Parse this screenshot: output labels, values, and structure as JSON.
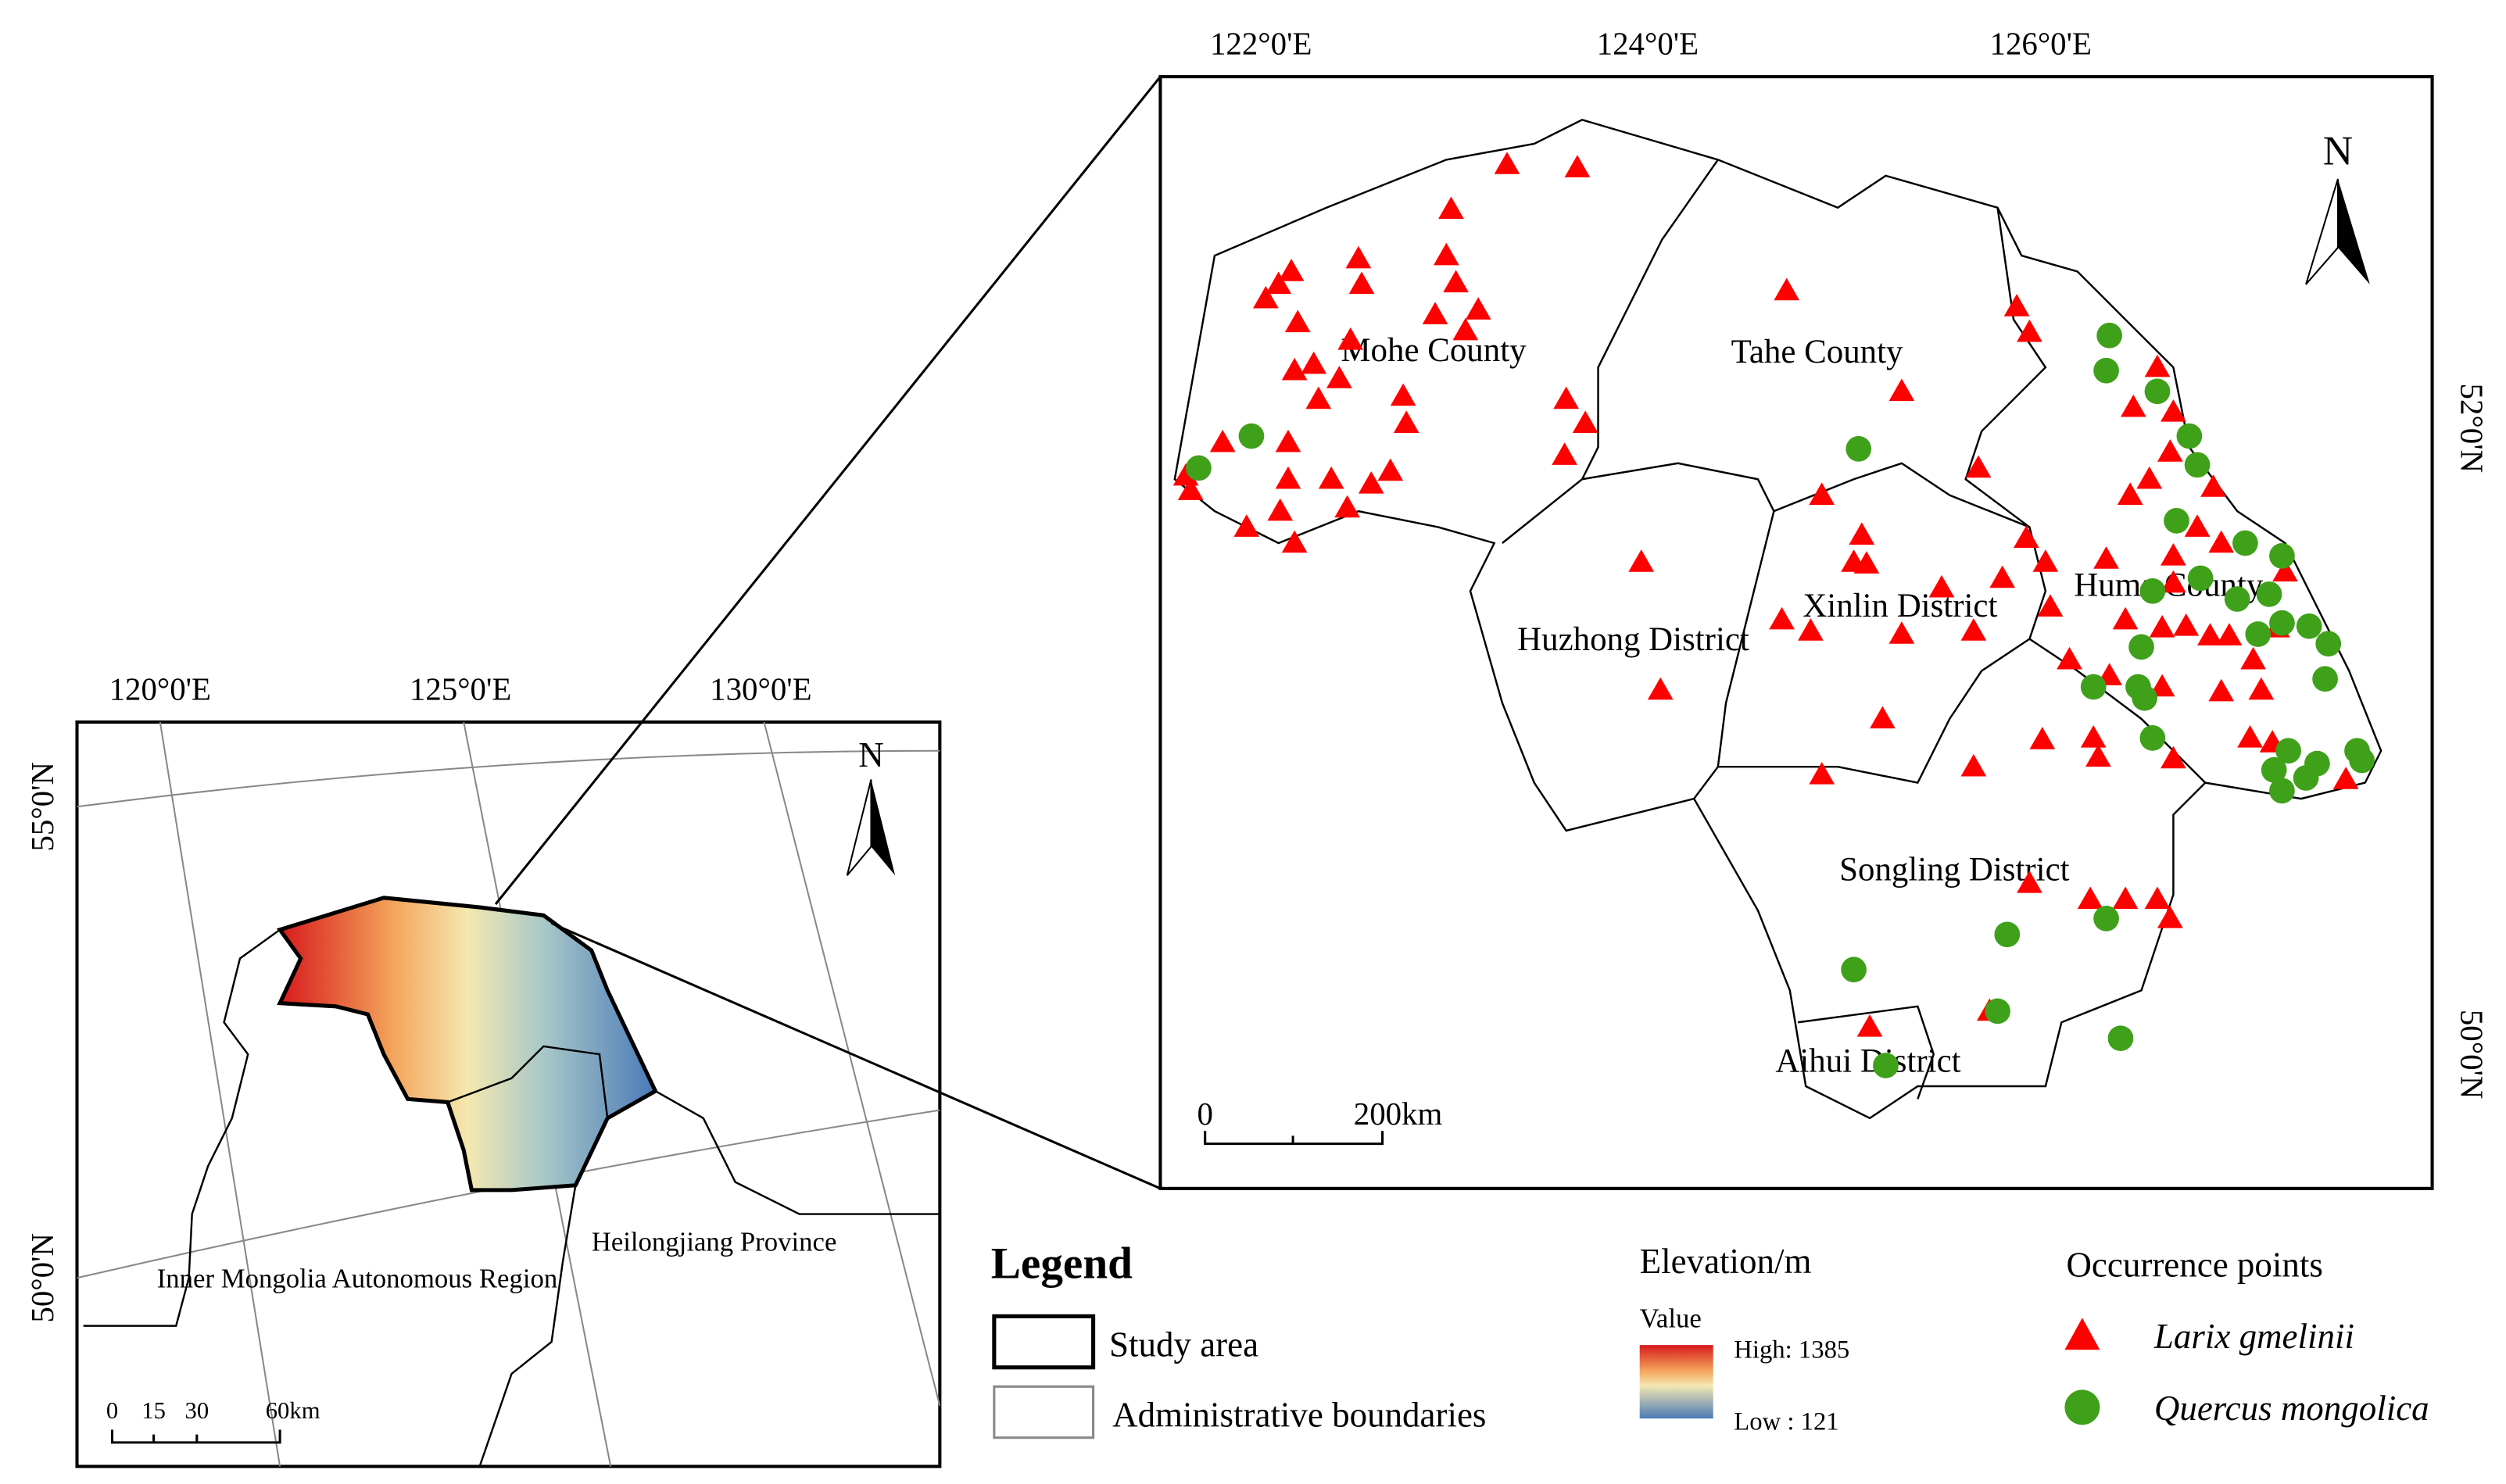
{
  "overview_map": {
    "lon_labels": [
      "120°0'E",
      "125°0'E",
      "130°0'E"
    ],
    "lat_labels": [
      "55°0'N",
      "50°0'N"
    ],
    "north": "N",
    "regions": [
      "Inner Mongolia Autonomous Region",
      "Heilongjiang Province"
    ],
    "scale_labels": [
      "0",
      "15",
      "30",
      "60km"
    ]
  },
  "detail_map": {
    "lon_labels": [
      "122°0'E",
      "124°0'E",
      "126°0'E"
    ],
    "lat_labels": [
      "52°0'N",
      "50°0'N"
    ],
    "north": "N",
    "districts": [
      "Mohe County",
      "Tahe County",
      "Xinlin District",
      "Huma County",
      "Huzhong District",
      "Songling District",
      "Aihui District"
    ],
    "scale_labels": [
      "0",
      "200km"
    ]
  },
  "legend": {
    "title": "Legend",
    "items": [
      "Study area",
      "Administrative boundaries"
    ]
  },
  "elevation": {
    "title": "Elevation/m",
    "subtitle": "Value",
    "high": "High: 1385",
    "low": "Low : 121"
  },
  "occurrence": {
    "title": "Occurrence points",
    "species": [
      "Larix gmelinii",
      "Quercus mongolica"
    ]
  }
}
